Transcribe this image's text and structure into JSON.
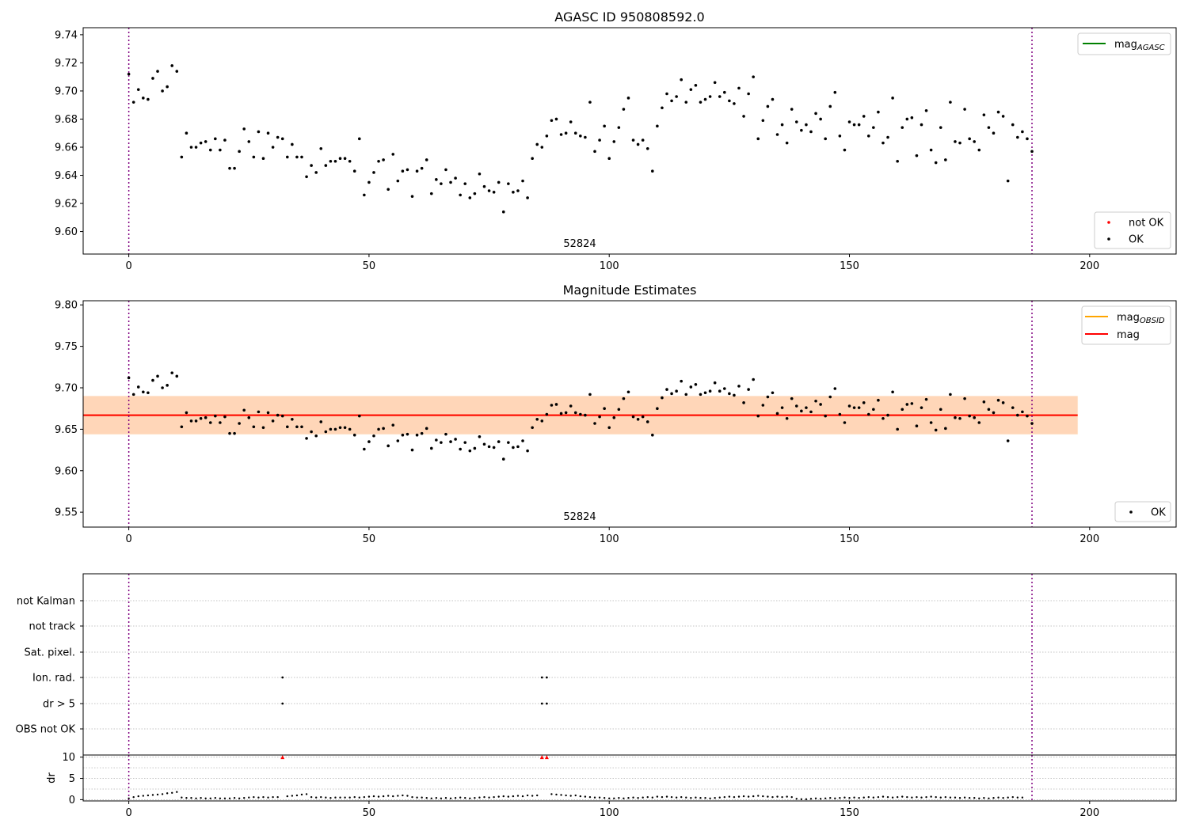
{
  "chart_data": [
    {
      "type": "scatter",
      "title": "AGASC ID 950808592.0",
      "annotation": "52824",
      "xlim": [
        -9.5,
        218
      ],
      "ylim": [
        9.584,
        9.745
      ],
      "xticks": [
        0,
        50,
        100,
        150,
        200
      ],
      "xtick_labels": [
        "0",
        "50",
        "100",
        "150",
        "200"
      ],
      "yticks": [
        9.6,
        9.62,
        9.64,
        9.66,
        9.68,
        9.7,
        9.72,
        9.74
      ],
      "ytick_labels": [
        "9.60",
        "9.62",
        "9.64",
        "9.66",
        "9.68",
        "9.70",
        "9.72",
        "9.74"
      ],
      "vlines": [
        0,
        188
      ],
      "legend_top": {
        "position": "top-right",
        "entries": [
          {
            "label_main": "mag",
            "label_sub": "AGASC",
            "color": "#008000"
          }
        ]
      },
      "legend_bottom": {
        "position": "bottom-right",
        "entries": [
          {
            "label": "not OK",
            "color": "#ff0000"
          },
          {
            "label": "OK",
            "color": "#000000"
          }
        ]
      },
      "series": [
        {
          "name": "OK",
          "color": "#000000",
          "x": [
            0,
            1,
            2,
            3,
            4,
            5,
            6,
            7,
            8,
            9,
            10,
            11,
            12,
            13,
            14,
            15,
            16,
            17,
            18,
            19,
            20,
            21,
            22,
            23,
            24,
            25,
            26,
            27,
            28,
            29,
            30,
            31,
            32,
            33,
            34,
            35,
            36,
            37,
            38,
            39,
            40,
            41,
            42,
            43,
            44,
            45,
            46,
            47,
            48,
            49,
            50,
            51,
            52,
            53,
            54,
            55,
            56,
            57,
            58,
            59,
            60,
            61,
            62,
            63,
            64,
            65,
            66,
            67,
            68,
            69,
            70,
            71,
            72,
            73,
            74,
            75,
            76,
            77,
            78,
            79,
            80,
            81,
            82,
            83,
            84,
            85,
            86,
            87,
            88,
            89,
            90,
            91,
            92,
            93,
            94,
            95,
            96,
            97,
            98,
            99,
            100,
            101,
            102,
            103,
            104,
            105,
            106,
            107,
            108,
            109,
            110,
            111,
            112,
            113,
            114,
            115,
            116,
            117,
            118,
            119,
            120,
            121,
            122,
            123,
            124,
            125,
            126,
            127,
            128,
            129,
            130,
            131,
            132,
            133,
            134,
            135,
            136,
            137,
            138,
            139,
            140,
            141,
            142,
            143,
            144,
            145,
            146,
            147,
            148,
            149,
            150,
            151,
            152,
            153,
            154,
            155,
            156,
            157,
            158,
            159,
            160,
            161,
            162,
            163,
            164,
            165,
            166,
            167,
            168,
            169,
            170,
            171,
            172,
            173,
            174,
            175,
            176,
            177,
            178,
            179,
            180,
            181,
            182,
            183,
            184,
            185,
            186,
            187,
            188
          ],
          "y": [
            9.712,
            9.692,
            9.701,
            9.695,
            9.694,
            9.709,
            9.714,
            9.7,
            9.703,
            9.718,
            9.714,
            9.653,
            9.67,
            9.66,
            9.66,
            9.663,
            9.664,
            9.658,
            9.666,
            9.658,
            9.665,
            9.645,
            9.645,
            9.657,
            9.673,
            9.664,
            9.653,
            9.671,
            9.652,
            9.67,
            9.66,
            9.667,
            9.666,
            9.653,
            9.662,
            9.653,
            9.653,
            9.639,
            9.647,
            9.642,
            9.659,
            9.647,
            9.65,
            9.65,
            9.652,
            9.652,
            9.65,
            9.643,
            9.666,
            9.626,
            9.635,
            9.642,
            9.65,
            9.651,
            9.63,
            9.655,
            9.636,
            9.643,
            9.644,
            9.625,
            9.643,
            9.645,
            9.651,
            9.627,
            9.637,
            9.634,
            9.644,
            9.635,
            9.638,
            9.626,
            9.634,
            9.624,
            9.627,
            9.641,
            9.632,
            9.629,
            9.628,
            9.635,
            9.614,
            9.634,
            9.628,
            9.629,
            9.636,
            9.624,
            9.652,
            9.662,
            9.66,
            9.668,
            9.679,
            9.68,
            9.669,
            9.67,
            9.678,
            9.67,
            9.668,
            9.667,
            9.692,
            9.657,
            9.665,
            9.675,
            9.652,
            9.664,
            9.674,
            9.687,
            9.695,
            9.665,
            9.662,
            9.665,
            9.659,
            9.643,
            9.675,
            9.688,
            9.698,
            9.693,
            9.696,
            9.708,
            9.692,
            9.701,
            9.704,
            9.692,
            9.694,
            9.696,
            9.706,
            9.696,
            9.699,
            9.693,
            9.691,
            9.702,
            9.682,
            9.698,
            9.71,
            9.666,
            9.679,
            9.689,
            9.694,
            9.669,
            9.676,
            9.663,
            9.687,
            9.678,
            9.672,
            9.676,
            9.671,
            9.684,
            9.68,
            9.666,
            9.689,
            9.699,
            9.668,
            9.658,
            9.678,
            9.676,
            9.676,
            9.682,
            9.668,
            9.674,
            9.685,
            9.663,
            9.667,
            9.695,
            9.65,
            9.674,
            9.68,
            9.681,
            9.654,
            9.676,
            9.686,
            9.658,
            9.649,
            9.674,
            9.651,
            9.692,
            9.664,
            9.663,
            9.687,
            9.666,
            9.664,
            9.658,
            9.683,
            9.674,
            9.67,
            9.685,
            9.682,
            9.636,
            9.676,
            9.667,
            9.671,
            9.666,
            9.657
          ]
        },
        {
          "name": "not OK",
          "color": "#ff0000",
          "x": [],
          "y": []
        }
      ]
    },
    {
      "type": "scatter",
      "title": "Magnitude Estimates",
      "annotation": "52824",
      "xlim": [
        -9.5,
        218
      ],
      "ylim": [
        9.532,
        9.805
      ],
      "xticks": [
        0,
        50,
        100,
        150,
        200
      ],
      "xtick_labels": [
        "0",
        "50",
        "100",
        "150",
        "200"
      ],
      "yticks": [
        9.55,
        9.6,
        9.65,
        9.7,
        9.75,
        9.8
      ],
      "ytick_labels": [
        "9.55",
        "9.60",
        "9.65",
        "9.70",
        "9.75",
        "9.80"
      ],
      "vlines": [
        0,
        188
      ],
      "mag": 9.667,
      "mag_band": [
        9.644,
        9.69
      ],
      "mag_band_xmax": 197.5,
      "mag_obsid_band": [
        9.644,
        9.69
      ],
      "mag_obsid_x": [
        -9.5,
        197.5
      ],
      "legend_top": {
        "position": "top-right",
        "entries": [
          {
            "label_main": "mag",
            "label_sub": "OBSID",
            "color": "#ffa500"
          },
          {
            "label_main": "mag",
            "label_sub": "",
            "color": "#ff0000"
          }
        ]
      },
      "legend_bottom": {
        "position": "bottom-right",
        "entries": [
          {
            "label": "OK",
            "color": "#000000"
          }
        ]
      },
      "series": [
        {
          "name": "OK",
          "color": "#000000",
          "same_as_panel": 0
        }
      ]
    },
    {
      "type": "scatter",
      "title": "",
      "xlim": [
        -9.5,
        218
      ],
      "xticks": [
        0,
        50,
        100,
        150,
        200
      ],
      "xtick_labels": [
        "0",
        "50",
        "100",
        "150",
        "200"
      ],
      "vlines": [
        0,
        188
      ],
      "flag_rows": [
        "not Kalman",
        "not track",
        "Sat. pixel.",
        "Ion. rad.",
        "dr > 5",
        "OBS not OK"
      ],
      "flags": {
        "Ion. rad.": [
          32,
          86,
          87
        ],
        "dr > 5": [
          32,
          86,
          87
        ]
      },
      "dr_panel": {
        "ylabel": "dr",
        "ylim": [
          -0.3,
          10.5
        ],
        "yticks": [
          0,
          5,
          10
        ],
        "ytick_labels": [
          "0",
          "5",
          "10"
        ],
        "clipped_at_10": [
          32,
          86,
          87
        ],
        "clipped_color": "#ff0000",
        "y": [
          0.3,
          0.6,
          0.8,
          0.9,
          1.0,
          1.1,
          1.2,
          1.3,
          1.5,
          1.6,
          1.8,
          0.5,
          0.4,
          0.4,
          0.3,
          0.4,
          0.3,
          0.3,
          0.4,
          0.3,
          0.3,
          0.3,
          0.4,
          0.3,
          0.4,
          0.5,
          0.6,
          0.5,
          0.6,
          0.5,
          0.6,
          0.6,
          10,
          0.8,
          0.9,
          1.0,
          1.2,
          1.3,
          0.6,
          0.5,
          0.6,
          0.5,
          0.4,
          0.5,
          0.5,
          0.5,
          0.5,
          0.6,
          0.5,
          0.6,
          0.7,
          0.8,
          0.7,
          0.8,
          0.9,
          0.8,
          0.9,
          1.0,
          0.9,
          0.6,
          0.5,
          0.5,
          0.4,
          0.3,
          0.4,
          0.3,
          0.4,
          0.3,
          0.4,
          0.5,
          0.4,
          0.3,
          0.4,
          0.5,
          0.6,
          0.5,
          0.6,
          0.7,
          0.8,
          0.7,
          0.8,
          0.9,
          0.8,
          1.0,
          0.9,
          1.0,
          10,
          10,
          1.3,
          1.2,
          1.1,
          1.0,
          0.9,
          1.0,
          0.8,
          0.7,
          0.6,
          0.5,
          0.5,
          0.4,
          0.3,
          0.3,
          0.4,
          0.3,
          0.4,
          0.5,
          0.4,
          0.5,
          0.6,
          0.5,
          0.7,
          0.6,
          0.7,
          0.6,
          0.5,
          0.6,
          0.5,
          0.4,
          0.5,
          0.4,
          0.4,
          0.3,
          0.4,
          0.5,
          0.6,
          0.7,
          0.6,
          0.7,
          0.8,
          0.7,
          0.8,
          0.9,
          0.8,
          0.7,
          0.6,
          0.7,
          0.6,
          0.7,
          0.6,
          0.2,
          0.1,
          0.1,
          0.2,
          0.3,
          0.2,
          0.3,
          0.4,
          0.3,
          0.4,
          0.5,
          0.4,
          0.5,
          0.4,
          0.5,
          0.6,
          0.5,
          0.6,
          0.7,
          0.6,
          0.5,
          0.6,
          0.7,
          0.6,
          0.5,
          0.6,
          0.5,
          0.6,
          0.7,
          0.6,
          0.5,
          0.6,
          0.5,
          0.5,
          0.4,
          0.5,
          0.4,
          0.4,
          0.3,
          0.4,
          0.3,
          0.4,
          0.5,
          0.4,
          0.5,
          0.6,
          0.5,
          0.5
        ]
      }
    }
  ]
}
